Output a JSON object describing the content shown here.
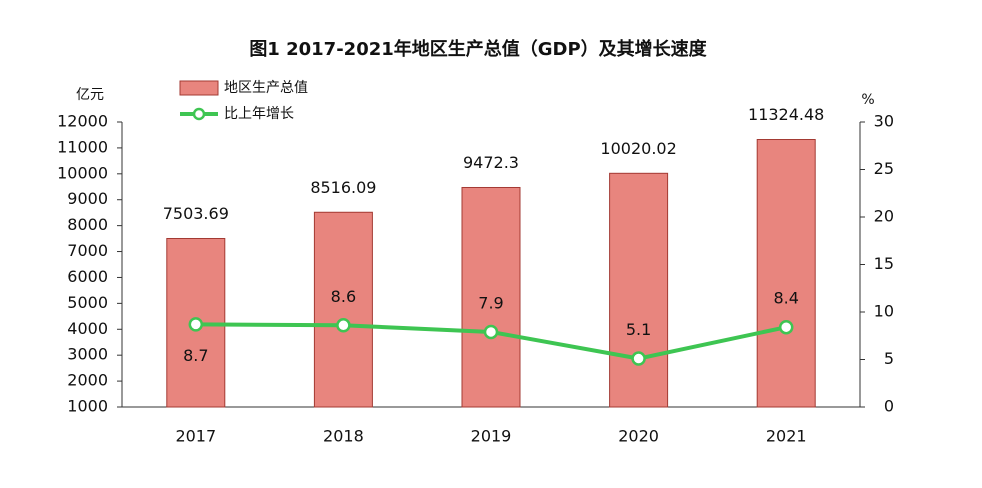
{
  "chart_data": {
    "type": "bar",
    "title": "图1  2017-2021年地区生产总值（GDP）及其增长速度",
    "y_label": "亿元",
    "y2_label": "%",
    "categories": [
      "2017",
      "2018",
      "2019",
      "2020",
      "2021"
    ],
    "series": [
      {
        "name": "地区生产总值",
        "type": "bar",
        "color": "#e8857e",
        "values": [
          7503.69,
          8516.09,
          9472.3,
          10020.02,
          11324.48
        ]
      },
      {
        "name": "比上年增长",
        "type": "line",
        "axis": "y2",
        "color": "#3ec552",
        "values": [
          8.7,
          8.6,
          7.9,
          5.1,
          8.4
        ]
      }
    ],
    "ylim": [
      1000,
      12000
    ],
    "yticks": [
      1000,
      2000,
      3000,
      4000,
      5000,
      6000,
      7000,
      8000,
      9000,
      10000,
      11000,
      12000
    ],
    "y2lim": [
      0,
      30
    ],
    "y2ticks": [
      0,
      5,
      10,
      15,
      20,
      25,
      30
    ],
    "grid": false,
    "legend": "top-left"
  }
}
